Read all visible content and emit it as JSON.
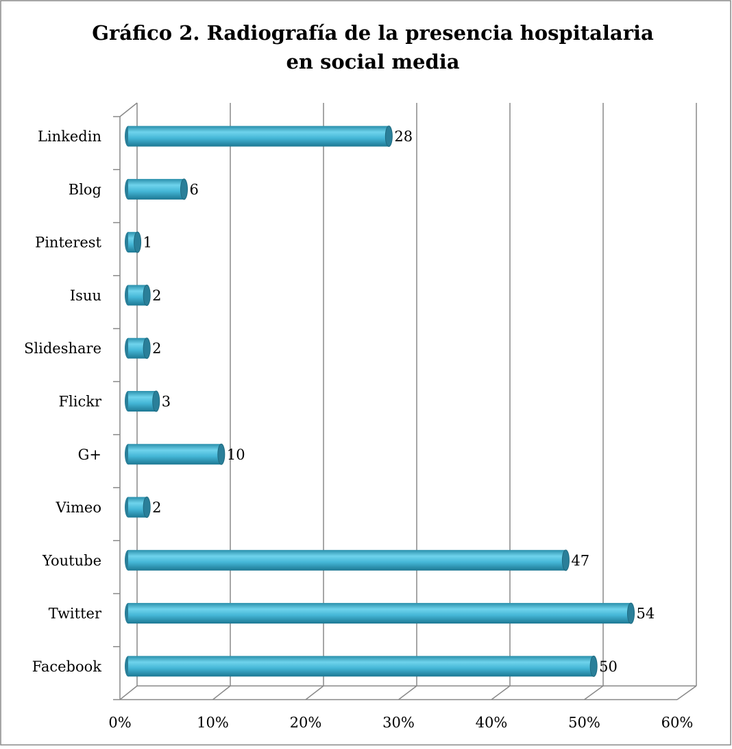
{
  "chart_data": {
    "type": "bar",
    "orientation": "horizontal",
    "title": "Gráfico 2. Radiografía de la presencia hospitalaria",
    "title_line2": "en social media",
    "categories": [
      "Linkedin",
      "Blog",
      "Pinterest",
      "Isuu",
      "Slideshare",
      "Flickr",
      "G+",
      "Vimeo",
      "Youtube",
      "Twitter",
      "Facebook"
    ],
    "values": [
      28,
      6,
      1,
      2,
      2,
      3,
      10,
      2,
      47,
      54,
      50
    ],
    "color": "#3fb5d6",
    "xlim": [
      0,
      60
    ],
    "xticks": [
      {
        "value": 0,
        "label": "0%"
      },
      {
        "value": 10,
        "label": "10%"
      },
      {
        "value": 20,
        "label": "20%"
      },
      {
        "value": 30,
        "label": "30%"
      },
      {
        "value": 40,
        "label": "40%"
      },
      {
        "value": 50,
        "label": "50%"
      },
      {
        "value": 60,
        "label": "60%"
      }
    ],
    "grid": true
  }
}
